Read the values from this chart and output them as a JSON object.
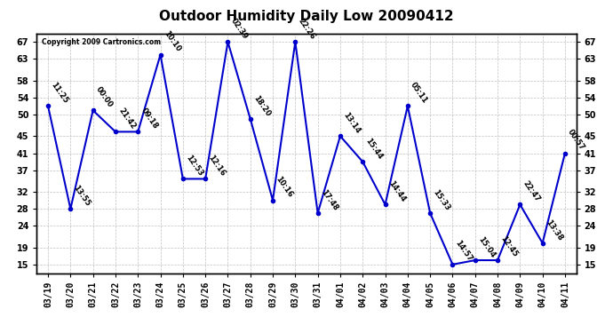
{
  "title": "Outdoor Humidity Daily Low 20090412",
  "copyright": "Copyright 2009 Cartronics.com",
  "line_color": "#0000CC",
  "background_color": "#ffffff",
  "grid_color": "#b0b0b0",
  "x_labels": [
    "03/19",
    "03/20",
    "03/21",
    "03/22",
    "03/23",
    "03/24",
    "03/25",
    "03/26",
    "03/27",
    "03/28",
    "03/29",
    "03/30",
    "03/31",
    "04/01",
    "04/02",
    "04/03",
    "04/04",
    "04/05",
    "04/06",
    "04/07",
    "04/08",
    "04/09",
    "04/10",
    "04/11"
  ],
  "y_values": [
    52,
    28,
    51,
    46,
    46,
    64,
    35,
    35,
    67,
    49,
    30,
    67,
    27,
    45,
    39,
    29,
    52,
    27,
    15,
    16,
    16,
    29,
    20,
    41
  ],
  "point_labels": [
    "11:25",
    "13:55",
    "00:00",
    "21:42",
    "09:18",
    "10:10",
    "12:53",
    "12:16",
    "02:39",
    "18:20",
    "10:16",
    "22:26",
    "17:48",
    "13:14",
    "15:44",
    "14:44",
    "05:11",
    "15:33",
    "14:57",
    "15:04",
    "12:45",
    "22:47",
    "13:38",
    "00:57"
  ],
  "ylim": [
    13,
    69
  ],
  "yticks": [
    15,
    19,
    24,
    28,
    32,
    37,
    41,
    45,
    50,
    54,
    58,
    63,
    67
  ],
  "title_fontsize": 11,
  "marker": "o",
  "markersize": 3,
  "linewidth": 1.5,
  "annotation_fontsize": 6,
  "tick_fontsize": 7
}
